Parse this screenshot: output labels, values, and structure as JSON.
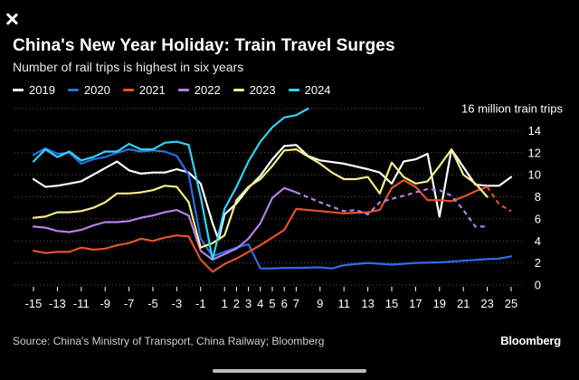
{
  "ui": {
    "close_label": "close",
    "brand": "Bloomberg"
  },
  "colors": {
    "background": "#000000",
    "s2019": "#ffffff",
    "s2020": "#2a6fe8",
    "s2021": "#e5512b",
    "s2022": "#b680ea",
    "s2023": "#f6ee86",
    "s2024": "#35d3f5",
    "grid": "#5a5a5a"
  },
  "chart_data": {
    "type": "line",
    "title": "China's New Year Holiday: Train Travel Surges",
    "subtitle": "Number of rail trips is highest in six years",
    "ylabel": "16 million train trips",
    "xlabel": "",
    "source": "Source: China's Ministry of Transport, China Railway; Bloomberg",
    "xlim": [
      -15,
      25
    ],
    "ylim": [
      0,
      16
    ],
    "xticks": [
      -15,
      -13,
      -11,
      -9,
      -7,
      -5,
      -3,
      -1,
      1,
      2,
      3,
      4,
      5,
      6,
      7,
      9,
      11,
      13,
      15,
      17,
      19,
      21,
      23,
      25
    ],
    "xtick_labels": [
      "-15",
      "-13",
      "-11",
      "-9",
      "-7",
      "-5",
      "-3",
      "-1",
      "1",
      "2",
      "3",
      "4",
      "5",
      "6",
      "7",
      "9",
      "11",
      "13",
      "15",
      "17",
      "19",
      "21",
      "23",
      "25"
    ],
    "yticks": [
      0,
      2,
      4,
      6,
      8,
      10,
      12,
      14
    ],
    "grid": true,
    "series": [
      {
        "name": "2019",
        "color_key": "s2019",
        "points": [
          [
            -15,
            9.6
          ],
          [
            -14,
            8.9
          ],
          [
            -13,
            9.0
          ],
          [
            -12,
            9.2
          ],
          [
            -11,
            9.4
          ],
          [
            -10,
            10.0
          ],
          [
            -9,
            10.6
          ],
          [
            -8,
            11.2
          ],
          [
            -7,
            10.4
          ],
          [
            -6,
            10.1
          ],
          [
            -5,
            10.2
          ],
          [
            -4,
            10.2
          ],
          [
            -3,
            10.5
          ],
          [
            -2,
            10.2
          ],
          [
            -1,
            9.2
          ],
          [
            0,
            5.6
          ],
          [
            0.5,
            4.1
          ],
          [
            1,
            6.4
          ],
          [
            2,
            7.4
          ],
          [
            3,
            8.8
          ],
          [
            4,
            9.9
          ],
          [
            5,
            11.4
          ],
          [
            6,
            12.6
          ],
          [
            7,
            12.7
          ],
          [
            8,
            11.7
          ],
          [
            9,
            11.3
          ],
          [
            11,
            11.0
          ],
          [
            13,
            10.5
          ],
          [
            14,
            10.2
          ],
          [
            15,
            9.2
          ],
          [
            16,
            11.2
          ],
          [
            17,
            11.4
          ],
          [
            18,
            11.9
          ],
          [
            19,
            6.2
          ],
          [
            20,
            12.3
          ],
          [
            21,
            10.7
          ],
          [
            22,
            9.1
          ],
          [
            23,
            9.0
          ],
          [
            24,
            9.0
          ],
          [
            25,
            9.8
          ]
        ],
        "dashed_from": null
      },
      {
        "name": "2020",
        "color_key": "s2020",
        "points": [
          [
            -15,
            11.8
          ],
          [
            -14,
            12.4
          ],
          [
            -13,
            11.9
          ],
          [
            -12,
            12.0
          ],
          [
            -11,
            11.0
          ],
          [
            -10,
            11.4
          ],
          [
            -9,
            11.6
          ],
          [
            -8,
            12.0
          ],
          [
            -7,
            12.3
          ],
          [
            -6,
            12.1
          ],
          [
            -5,
            12.2
          ],
          [
            -4,
            12.1
          ],
          [
            -3,
            11.7
          ],
          [
            -2,
            10.0
          ],
          [
            -1,
            4.2
          ],
          [
            0,
            2.6
          ],
          [
            1,
            3.0
          ],
          [
            2,
            3.4
          ],
          [
            3,
            3.7
          ],
          [
            4,
            1.5
          ],
          [
            5,
            1.5
          ],
          [
            6,
            1.55
          ],
          [
            7,
            1.55
          ],
          [
            9,
            1.6
          ],
          [
            10,
            1.5
          ],
          [
            11,
            1.8
          ],
          [
            13,
            2.0
          ],
          [
            15,
            1.85
          ],
          [
            17,
            2.0
          ],
          [
            19,
            2.05
          ],
          [
            21,
            2.2
          ],
          [
            23,
            2.35
          ],
          [
            24,
            2.4
          ],
          [
            25,
            2.6
          ]
        ],
        "dashed_from": null
      },
      {
        "name": "2021",
        "color_key": "s2021",
        "points": [
          [
            -15,
            3.1
          ],
          [
            -14,
            2.9
          ],
          [
            -13,
            3.0
          ],
          [
            -12,
            3.0
          ],
          [
            -11,
            3.4
          ],
          [
            -10,
            3.2
          ],
          [
            -9,
            3.3
          ],
          [
            -8,
            3.6
          ],
          [
            -7,
            3.8
          ],
          [
            -6,
            4.2
          ],
          [
            -5,
            4.0
          ],
          [
            -4,
            4.3
          ],
          [
            -3,
            4.5
          ],
          [
            -2,
            4.4
          ],
          [
            -1,
            2.3
          ],
          [
            0,
            1.2
          ],
          [
            1,
            1.9
          ],
          [
            2,
            2.4
          ],
          [
            3,
            3.0
          ],
          [
            4,
            3.6
          ],
          [
            5,
            4.3
          ],
          [
            6,
            5.0
          ],
          [
            7,
            6.9
          ],
          [
            9,
            6.7
          ],
          [
            11,
            6.5
          ],
          [
            13,
            6.6
          ],
          [
            14,
            6.8
          ],
          [
            15,
            8.8
          ],
          [
            16,
            9.5
          ],
          [
            17,
            8.9
          ],
          [
            18,
            7.7
          ],
          [
            19,
            7.7
          ],
          [
            20,
            7.6
          ],
          [
            21,
            8.0
          ],
          [
            22,
            8.5
          ],
          [
            23,
            8.9
          ],
          [
            24,
            7.3
          ],
          [
            25,
            6.7
          ]
        ],
        "dashed_from": 23
      },
      {
        "name": "2022",
        "color_key": "s2022",
        "points": [
          [
            -15,
            5.3
          ],
          [
            -14,
            5.2
          ],
          [
            -13,
            4.9
          ],
          [
            -12,
            4.8
          ],
          [
            -11,
            5.0
          ],
          [
            -10,
            5.4
          ],
          [
            -9,
            5.7
          ],
          [
            -8,
            5.7
          ],
          [
            -7,
            5.8
          ],
          [
            -6,
            6.1
          ],
          [
            -5,
            6.3
          ],
          [
            -4,
            6.6
          ],
          [
            -3,
            6.8
          ],
          [
            -2,
            6.3
          ],
          [
            -1,
            3.1
          ],
          [
            0,
            2.3
          ],
          [
            1,
            2.8
          ],
          [
            2,
            3.3
          ],
          [
            3,
            4.2
          ],
          [
            4,
            5.6
          ],
          [
            5,
            7.9
          ],
          [
            6,
            8.8
          ],
          [
            7,
            8.4
          ],
          [
            9,
            7.5
          ],
          [
            10,
            7.1
          ],
          [
            11,
            6.7
          ],
          [
            12,
            6.8
          ],
          [
            13,
            6.4
          ],
          [
            14,
            7.5
          ],
          [
            15,
            7.8
          ],
          [
            16,
            8.1
          ],
          [
            17,
            8.4
          ],
          [
            18,
            8.7
          ],
          [
            19,
            8.6
          ],
          [
            20,
            8.1
          ],
          [
            21,
            6.8
          ],
          [
            22,
            5.3
          ],
          [
            23,
            5.3
          ]
        ],
        "dashed_from": 7
      },
      {
        "name": "2023",
        "color_key": "s2023",
        "points": [
          [
            -15,
            6.1
          ],
          [
            -14,
            6.2
          ],
          [
            -13,
            6.6
          ],
          [
            -12,
            6.6
          ],
          [
            -11,
            6.7
          ],
          [
            -10,
            7.0
          ],
          [
            -9,
            7.5
          ],
          [
            -8,
            8.3
          ],
          [
            -7,
            8.3
          ],
          [
            -6,
            8.4
          ],
          [
            -5,
            8.6
          ],
          [
            -4,
            9.0
          ],
          [
            -3,
            8.9
          ],
          [
            -2,
            7.5
          ],
          [
            -1,
            3.4
          ],
          [
            0,
            3.8
          ],
          [
            1,
            4.5
          ],
          [
            2,
            7.7
          ],
          [
            3,
            8.9
          ],
          [
            4,
            9.6
          ],
          [
            5,
            10.8
          ],
          [
            6,
            12.2
          ],
          [
            7,
            12.3
          ],
          [
            9,
            11.0
          ],
          [
            10,
            10.2
          ],
          [
            11,
            9.6
          ],
          [
            12,
            9.6
          ],
          [
            13,
            9.8
          ],
          [
            14,
            8.3
          ],
          [
            15,
            11.1
          ],
          [
            16,
            9.8
          ],
          [
            17,
            9.2
          ],
          [
            18,
            9.4
          ],
          [
            19,
            10.8
          ],
          [
            20,
            12.3
          ],
          [
            21,
            10.0
          ],
          [
            22,
            9.2
          ],
          [
            23,
            8.0
          ]
        ],
        "dashed_from": null
      },
      {
        "name": "2024",
        "color_key": "s2024",
        "points": [
          [
            -15,
            11.2
          ],
          [
            -14,
            12.3
          ],
          [
            -13,
            11.6
          ],
          [
            -12,
            12.1
          ],
          [
            -11,
            11.3
          ],
          [
            -10,
            11.6
          ],
          [
            -9,
            12.1
          ],
          [
            -8,
            12.1
          ],
          [
            -7,
            12.8
          ],
          [
            -6,
            12.3
          ],
          [
            -5,
            12.3
          ],
          [
            -4,
            12.9
          ],
          [
            -3,
            13.0
          ],
          [
            -2,
            12.7
          ],
          [
            -1,
            8.0
          ],
          [
            0,
            2.3
          ],
          [
            1,
            6.9
          ],
          [
            2,
            8.9
          ],
          [
            3,
            11.2
          ],
          [
            4,
            13.0
          ],
          [
            5,
            14.3
          ],
          [
            6,
            15.2
          ],
          [
            7,
            15.4
          ],
          [
            8,
            16.0
          ]
        ],
        "dashed_from": null
      }
    ]
  }
}
